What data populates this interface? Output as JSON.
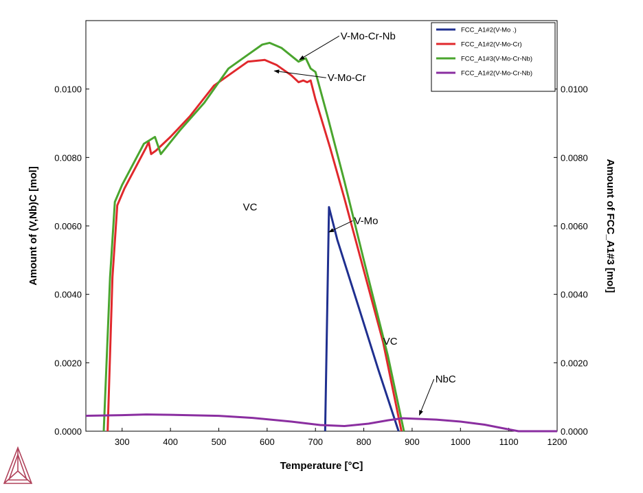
{
  "chart_data": {
    "type": "line",
    "xlabel": "Temperature [°C]",
    "ylabel": "Amount of (V,Nb)C [mol]",
    "y2label": "Amount of FCC_A1#3 [mol]",
    "xlim": [
      225,
      1200
    ],
    "ylim": [
      0,
      0.012
    ],
    "xticks": [
      300,
      400,
      500,
      600,
      700,
      800,
      900,
      1000,
      1100,
      1200
    ],
    "yticks": [
      {
        "value": 0,
        "label": "0.0000"
      },
      {
        "value": 0.002,
        "label": "0.0020"
      },
      {
        "value": 0.004,
        "label": "0.0040"
      },
      {
        "value": 0.006,
        "label": "0.0060"
      },
      {
        "value": 0.008,
        "label": "0.0080"
      },
      {
        "value": 0.01,
        "label": "0.0100"
      }
    ],
    "legend_position": "top-right",
    "series": [
      {
        "name": "FCC_A1#2(V-Mo .)",
        "color": "#1f2f8f",
        "points": [
          [
            720,
            0
          ],
          [
            728,
            0.00655
          ],
          [
            745,
            0.0056
          ],
          [
            790,
            0.0036
          ],
          [
            830,
            0.0018
          ],
          [
            872,
            0
          ]
        ]
      },
      {
        "name": "FCC_A1#2(V-Mo-Cr)",
        "color": "#e0282c",
        "points": [
          [
            270,
            0
          ],
          [
            280,
            0.0045
          ],
          [
            290,
            0.0066
          ],
          [
            305,
            0.0071
          ],
          [
            350,
            0.0083
          ],
          [
            355,
            0.00845
          ],
          [
            360,
            0.0081
          ],
          [
            370,
            0.0082
          ],
          [
            400,
            0.0086
          ],
          [
            440,
            0.0092
          ],
          [
            490,
            0.0101
          ],
          [
            520,
            0.0104
          ],
          [
            560,
            0.0108
          ],
          [
            595,
            0.01085
          ],
          [
            620,
            0.0107
          ],
          [
            650,
            0.0104
          ],
          [
            665,
            0.0102
          ],
          [
            675,
            0.01025
          ],
          [
            683,
            0.0102
          ],
          [
            690,
            0.01025
          ],
          [
            700,
            0.0097
          ],
          [
            730,
            0.0083
          ],
          [
            760,
            0.0068
          ],
          [
            800,
            0.0047
          ],
          [
            840,
            0.0026
          ],
          [
            878,
            0
          ]
        ]
      },
      {
        "name": "FCC_A1#3(V-Mo-Cr-Nb)",
        "color": "#4aa52e",
        "points": [
          [
            262,
            0
          ],
          [
            275,
            0.0045
          ],
          [
            285,
            0.0067
          ],
          [
            300,
            0.0072
          ],
          [
            345,
            0.0084
          ],
          [
            368,
            0.0086
          ],
          [
            380,
            0.0081
          ],
          [
            420,
            0.0088
          ],
          [
            470,
            0.0096
          ],
          [
            520,
            0.0106
          ],
          [
            560,
            0.011
          ],
          [
            590,
            0.0113
          ],
          [
            605,
            0.01135
          ],
          [
            630,
            0.0112
          ],
          [
            665,
            0.0108
          ],
          [
            680,
            0.0109
          ],
          [
            690,
            0.0106
          ],
          [
            700,
            0.0105
          ],
          [
            725,
            0.0092
          ],
          [
            760,
            0.0073
          ],
          [
            800,
            0.005
          ],
          [
            850,
            0.0022
          ],
          [
            883,
            0
          ]
        ]
      },
      {
        "name": "FCC_A1#2(V-Mo-Cr-Nb)",
        "color": "#8a2ea0",
        "points": [
          [
            225,
            0.00045
          ],
          [
            300,
            0.00047
          ],
          [
            350,
            0.00049
          ],
          [
            400,
            0.00048
          ],
          [
            500,
            0.00045
          ],
          [
            570,
            0.00039
          ],
          [
            650,
            0.00028
          ],
          [
            710,
            0.00018
          ],
          [
            760,
            0.00015
          ],
          [
            810,
            0.00022
          ],
          [
            850,
            0.00032
          ],
          [
            880,
            0.00038
          ],
          [
            950,
            0.00034
          ],
          [
            1000,
            0.00028
          ],
          [
            1050,
            0.00019
          ],
          [
            1090,
            8e-05
          ],
          [
            1120,
            0
          ],
          [
            1200,
            0
          ]
        ]
      }
    ],
    "annotations": [
      {
        "text": "V-Mo-Cr-Nb",
        "x": 752,
        "y": 0.01145,
        "ax": 667,
        "ay": 0.01086
      },
      {
        "text": "V-Mo-Cr",
        "x": 725,
        "y": 0.01023,
        "ax": 615,
        "ay": 0.01053
      },
      {
        "text": "V-Mo",
        "x": 780,
        "y": 0.00605,
        "ax": 728,
        "ay": 0.00582
      },
      {
        "text": "VC",
        "x": 550,
        "y": 0.00645
      },
      {
        "text": "VC",
        "x": 840,
        "y": 0.00253
      },
      {
        "text": "NbC",
        "x": 948,
        "y": 0.00142,
        "ax": 915,
        "ay": 0.00047
      }
    ]
  }
}
